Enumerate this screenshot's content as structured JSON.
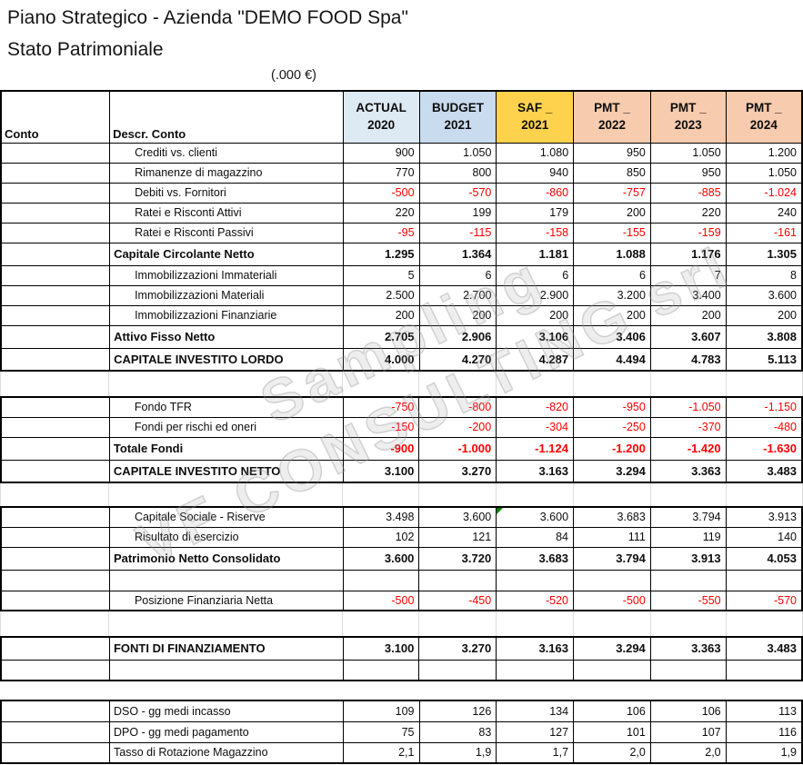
{
  "page": {
    "title": "Piano Strategico - Azienda \"DEMO FOOD Spa\"",
    "subtitle": "Stato Patrimoniale",
    "units": "(.000 €)"
  },
  "watermark": {
    "line1": "Sampling",
    "line2": "VF CONSULTING srl"
  },
  "colors": {
    "actual": "#dde9f3",
    "budget": "#c9dbee",
    "saf": "#ffd24d",
    "pmt": "#f7cbad",
    "negative": "#ff0000",
    "border": "#000000",
    "gridline": "#dcdcdc"
  },
  "table": {
    "row_header_columns": [
      {
        "key": "conto",
        "label": "Conto"
      },
      {
        "key": "descr-conto",
        "label": "Descr. Conto"
      }
    ],
    "value_columns": [
      {
        "key": "actual-2020",
        "line1": "ACTUAL",
        "line2": "2020",
        "color_key": "actual"
      },
      {
        "key": "budget-2021",
        "line1": "BUDGET",
        "line2": "2021",
        "color_key": "budget"
      },
      {
        "key": "saf-2021",
        "line1": "SAF _",
        "line2": "2021",
        "color_key": "saf"
      },
      {
        "key": "pmt-2022",
        "line1": "PMT _",
        "line2": "2022",
        "color_key": "pmt"
      },
      {
        "key": "pmt-2023",
        "line1": "PMT _",
        "line2": "2023",
        "color_key": "pmt"
      },
      {
        "key": "pmt-2024",
        "line1": "PMT _",
        "line2": "2024",
        "color_key": "pmt"
      }
    ],
    "groups": [
      {
        "rows": [
          {
            "type": "detail",
            "label": "Crediti vs. clienti",
            "values": [
              "900",
              "1.050",
              "1.080",
              "950",
              "1.050",
              "1.200"
            ]
          },
          {
            "type": "detail",
            "label": "Rimanenze di magazzino",
            "values": [
              "770",
              "800",
              "940",
              "850",
              "950",
              "1.050"
            ]
          },
          {
            "type": "detail",
            "label": "Debiti vs. Fornitori",
            "values": [
              "-500",
              "-570",
              "-860",
              "-757",
              "-885",
              "-1.024"
            ]
          },
          {
            "type": "detail",
            "label": "Ratei e Risconti Attivi",
            "values": [
              "220",
              "199",
              "179",
              "200",
              "220",
              "240"
            ]
          },
          {
            "type": "detail",
            "label": "Ratei e Risconti Passivi",
            "values": [
              "-95",
              "-115",
              "-158",
              "-155",
              "-159",
              "-161"
            ]
          },
          {
            "type": "total",
            "label": "Capitale Circolante Netto",
            "values": [
              "1.295",
              "1.364",
              "1.181",
              "1.088",
              "1.176",
              "1.305"
            ]
          },
          {
            "type": "detail",
            "label": "Immobilizzazioni Immateriali",
            "values": [
              "5",
              "6",
              "6",
              "6",
              "7",
              "8"
            ]
          },
          {
            "type": "detail",
            "label": "Immobilizzazioni Materiali",
            "values": [
              "2.500",
              "2.700",
              "2.900",
              "3.200",
              "3.400",
              "3.600"
            ]
          },
          {
            "type": "detail",
            "label": "Immobilizzazioni Finanziarie",
            "values": [
              "200",
              "200",
              "200",
              "200",
              "200",
              "200"
            ]
          },
          {
            "type": "total",
            "label": "Attivo Fisso Netto",
            "values": [
              "2.705",
              "2.906",
              "3.106",
              "3.406",
              "3.607",
              "3.808"
            ]
          },
          {
            "type": "total",
            "label": "CAPITALE INVESTITO LORDO",
            "values": [
              "4.000",
              "4.270",
              "4.287",
              "4.494",
              "4.783",
              "5.113"
            ]
          }
        ]
      },
      {
        "rows": [
          {
            "type": "detail",
            "label": "Fondo TFR",
            "values": [
              "-750",
              "-800",
              "-820",
              "-950",
              "-1.050",
              "-1.150"
            ]
          },
          {
            "type": "detail",
            "label": "Fondi per rischi ed oneri",
            "values": [
              "-150",
              "-200",
              "-304",
              "-250",
              "-370",
              "-480"
            ]
          },
          {
            "type": "total",
            "label": "Totale Fondi",
            "values": [
              "-900",
              "-1.000",
              "-1.124",
              "-1.200",
              "-1.420",
              "-1.630"
            ]
          },
          {
            "type": "total",
            "label": "CAPITALE INVESTITO NETTO",
            "values": [
              "3.100",
              "3.270",
              "3.163",
              "3.294",
              "3.363",
              "3.483"
            ]
          }
        ]
      },
      {
        "rows": [
          {
            "type": "detail",
            "label": "Capitale Sociale - Riserve",
            "values": [
              "3.498",
              "3.600",
              "3.600",
              "3.683",
              "3.794",
              "3.913"
            ],
            "marker_col": 2
          },
          {
            "type": "detail",
            "label": "Risultato di esercizio",
            "values": [
              "102",
              "121",
              "84",
              "111",
              "119",
              "140"
            ]
          },
          {
            "type": "total",
            "label": "Patrimonio Netto Consolidato",
            "values": [
              "3.600",
              "3.720",
              "3.683",
              "3.794",
              "3.913",
              "4.053"
            ]
          },
          {
            "type": "empty"
          },
          {
            "type": "detail",
            "label": "Posizione Finanziaria Netta",
            "values": [
              "-500",
              "-450",
              "-520",
              "-500",
              "-550",
              "-570"
            ]
          }
        ]
      },
      {
        "rows": [
          {
            "type": "total",
            "label": "FONTI DI FINANZIAMENTO",
            "values": [
              "3.100",
              "3.270",
              "3.163",
              "3.294",
              "3.363",
              "3.483"
            ]
          },
          {
            "type": "empty"
          }
        ]
      },
      {
        "rows": [
          {
            "type": "flush",
            "label": "DSO - gg medi incasso",
            "values": [
              "109",
              "126",
              "134",
              "106",
              "106",
              "113"
            ]
          },
          {
            "type": "flush",
            "label": "DPO - gg medi pagamento",
            "values": [
              "75",
              "83",
              "127",
              "101",
              "107",
              "116"
            ]
          },
          {
            "type": "flush",
            "label": "Tasso di Rotazione Magazzino",
            "values": [
              "2,1",
              "1,9",
              "1,7",
              "2,0",
              "2,0",
              "1,9"
            ]
          }
        ]
      }
    ]
  }
}
